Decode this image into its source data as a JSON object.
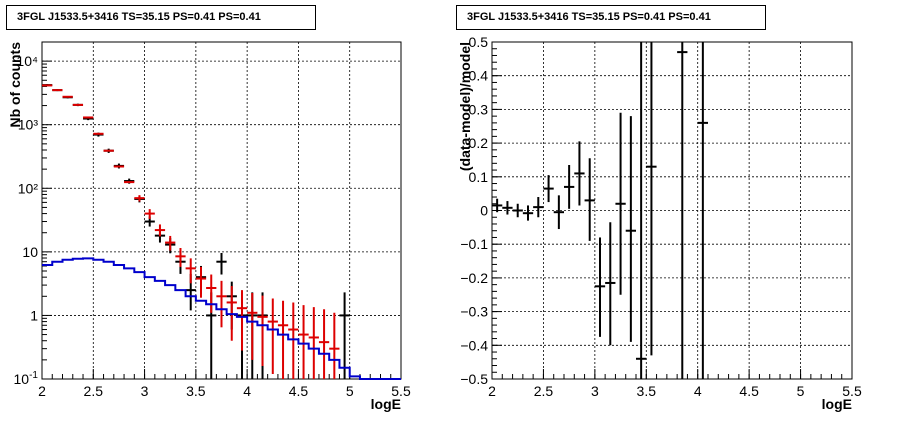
{
  "chart_data": [
    {
      "type": "line",
      "title": "3FGL J1533.5+3416 TS=35.15 PS=0.41 PS=0.41",
      "xlabel": "logE",
      "ylabel": "Nb of counts",
      "log_y": true,
      "grid": true,
      "xlim": [
        2,
        5.5
      ],
      "ylim": [
        0.1,
        20000
      ],
      "x_ticks": [
        2,
        2.5,
        3,
        3.5,
        4,
        4.5,
        5,
        5.5
      ],
      "x_tick_labels": [
        "2",
        "2.5",
        "3",
        "3.5",
        "4",
        "4.5",
        "5",
        "5.5"
      ],
      "y_ticks": [
        0.1,
        1,
        10,
        100,
        1000,
        10000
      ],
      "y_tick_labels": [
        "10-1",
        "1",
        "10",
        "10²",
        "10³",
        "10⁴"
      ],
      "colors": {
        "data": "#000000",
        "model": "#dd0000",
        "background": "#0000cc"
      },
      "series": [
        {
          "role": "data",
          "points": [
            {
              "x": 2.05,
              "y": 4200,
              "lo": 4050,
              "hi": 4350
            },
            {
              "x": 2.15,
              "y": 3500,
              "lo": 3380,
              "hi": 3620
            },
            {
              "x": 2.25,
              "y": 2700,
              "lo": 2600,
              "hi": 2800
            },
            {
              "x": 2.35,
              "y": 2050,
              "lo": 1960,
              "hi": 2140
            },
            {
              "x": 2.45,
              "y": 1250,
              "lo": 1180,
              "hi": 1320
            },
            {
              "x": 2.55,
              "y": 700,
              "lo": 650,
              "hi": 750
            },
            {
              "x": 2.65,
              "y": 390,
              "lo": 360,
              "hi": 420
            },
            {
              "x": 2.75,
              "y": 225,
              "lo": 205,
              "hi": 245
            },
            {
              "x": 2.85,
              "y": 130,
              "lo": 118,
              "hi": 142
            },
            {
              "x": 2.95,
              "y": 68,
              "lo": 60,
              "hi": 76
            },
            {
              "x": 3.05,
              "y": 30,
              "lo": 25,
              "hi": 36
            },
            {
              "x": 3.15,
              "y": 18,
              "lo": 14,
              "hi": 22
            },
            {
              "x": 3.25,
              "y": 13,
              "lo": 9.5,
              "hi": 16.5
            },
            {
              "x": 3.35,
              "y": 7,
              "lo": 4.5,
              "hi": 9.5
            },
            {
              "x": 3.45,
              "y": 2.5,
              "lo": 1.2,
              "hi": 4.5
            },
            {
              "x": 3.55,
              "y": 4,
              "lo": 2.2,
              "hi": 6
            },
            {
              "x": 3.65,
              "y": 1,
              "lo": 0.1,
              "hi": 2.3
            },
            {
              "x": 3.75,
              "y": 7,
              "lo": 4.4,
              "hi": 9.6
            },
            {
              "x": 3.85,
              "y": 2,
              "lo": 0.6,
              "hi": 3.4
            },
            {
              "x": 3.95,
              "y": 1,
              "lo": 0.1,
              "hi": 2.3
            },
            {
              "x": 4.05,
              "y": 1,
              "lo": 0.1,
              "hi": 2.3
            },
            {
              "x": 4.15,
              "y": 1,
              "lo": 0.1,
              "hi": 2.3
            },
            {
              "x": 4.95,
              "y": 1,
              "lo": 0.1,
              "hi": 2.3
            }
          ]
        },
        {
          "role": "model",
          "points": [
            {
              "x": 2.05,
              "y": 4150,
              "lo": 4150,
              "hi": 4150
            },
            {
              "x": 2.15,
              "y": 3500,
              "lo": 3500,
              "hi": 3500
            },
            {
              "x": 2.25,
              "y": 2750,
              "lo": 2750,
              "hi": 2750
            },
            {
              "x": 2.35,
              "y": 2050,
              "lo": 2050,
              "hi": 2050
            },
            {
              "x": 2.45,
              "y": 1300,
              "lo": 1300,
              "hi": 1300
            },
            {
              "x": 2.55,
              "y": 720,
              "lo": 720,
              "hi": 720
            },
            {
              "x": 2.65,
              "y": 390,
              "lo": 390,
              "hi": 390
            },
            {
              "x": 2.75,
              "y": 220,
              "lo": 220,
              "hi": 220
            },
            {
              "x": 2.85,
              "y": 125,
              "lo": 125,
              "hi": 125
            },
            {
              "x": 2.95,
              "y": 70,
              "lo": 62,
              "hi": 78
            },
            {
              "x": 3.05,
              "y": 40,
              "lo": 33,
              "hi": 47
            },
            {
              "x": 3.15,
              "y": 22,
              "lo": 17.5,
              "hi": 27
            },
            {
              "x": 3.25,
              "y": 14,
              "lo": 10.5,
              "hi": 17.8
            },
            {
              "x": 3.35,
              "y": 8.5,
              "lo": 5.8,
              "hi": 11.5
            },
            {
              "x": 3.45,
              "y": 5.5,
              "lo": 3.2,
              "hi": 7.9
            },
            {
              "x": 3.55,
              "y": 3.8,
              "lo": 1.9,
              "hi": 5.8
            },
            {
              "x": 3.65,
              "y": 2.7,
              "lo": 1.1,
              "hi": 4.4
            },
            {
              "x": 3.75,
              "y": 2.0,
              "lo": 0.65,
              "hi": 3.5
            },
            {
              "x": 3.85,
              "y": 1.6,
              "lo": 0.4,
              "hi": 2.9
            },
            {
              "x": 3.95,
              "y": 1.3,
              "lo": 0.28,
              "hi": 2.5
            },
            {
              "x": 4.05,
              "y": 1.1,
              "lo": 0.2,
              "hi": 2.25
            },
            {
              "x": 4.15,
              "y": 0.95,
              "lo": 0.16,
              "hi": 2.05
            },
            {
              "x": 4.25,
              "y": 0.8,
              "lo": 0.12,
              "hi": 1.85
            },
            {
              "x": 4.35,
              "y": 0.7,
              "lo": 0.1,
              "hi": 1.7
            },
            {
              "x": 4.45,
              "y": 0.6,
              "lo": 0.1,
              "hi": 1.6
            },
            {
              "x": 4.55,
              "y": 0.5,
              "lo": 0.1,
              "hi": 1.45
            },
            {
              "x": 4.65,
              "y": 0.45,
              "lo": 0.1,
              "hi": 1.35
            },
            {
              "x": 4.75,
              "y": 0.38,
              "lo": 0.1,
              "hi": 1.25
            },
            {
              "x": 4.85,
              "y": 0.3,
              "lo": 0.1,
              "hi": 1.1
            }
          ]
        },
        {
          "role": "background",
          "bin_edges": [
            2.0,
            2.1,
            2.2,
            2.3,
            2.4,
            2.5,
            2.6,
            2.7,
            2.8,
            2.9,
            3.0,
            3.1,
            3.2,
            3.3,
            3.4,
            3.5,
            3.6,
            3.7,
            3.8,
            3.9,
            4.0,
            4.1,
            4.2,
            4.3,
            4.4,
            4.5,
            4.6,
            4.7,
            4.8,
            4.9,
            5.0,
            5.1,
            5.2,
            5.3,
            5.4,
            5.5
          ],
          "values": [
            6.2,
            7.0,
            7.5,
            7.8,
            7.9,
            7.5,
            7.0,
            6.2,
            5.5,
            4.8,
            4.0,
            3.5,
            3.0,
            2.5,
            2.0,
            1.7,
            1.5,
            1.25,
            1.05,
            0.95,
            0.8,
            0.7,
            0.6,
            0.5,
            0.42,
            0.36,
            0.3,
            0.25,
            0.2,
            0.15,
            0.11,
            0.1,
            0.1,
            0.1,
            0.1
          ]
        }
      ]
    },
    {
      "type": "scatter",
      "title": "3FGL J1533.5+3416 TS=35.15 PS=0.41 PS=0.41",
      "xlabel": "logE",
      "ylabel": "(data-model)/model",
      "grid": true,
      "xlim": [
        2,
        5.5
      ],
      "ylim": [
        -0.5,
        0.5
      ],
      "x_ticks": [
        2,
        2.5,
        3,
        3.5,
        4,
        4.5,
        5,
        5.5
      ],
      "x_tick_labels": [
        "2",
        "2.5",
        "3",
        "3.5",
        "4",
        "4.5",
        "5",
        "5.5"
      ],
      "y_ticks": [
        -0.5,
        -0.4,
        -0.3,
        -0.2,
        -0.1,
        0,
        0.1,
        0.2,
        0.3,
        0.4,
        0.5
      ],
      "y_tick_labels": [
        "−0.5",
        "−0.4",
        "−0.3",
        "−0.2",
        "−0.1",
        "0",
        "0.1",
        "0.2",
        "0.3",
        "0.4",
        "0.5"
      ],
      "series": [
        {
          "role": "residual",
          "points": [
            {
              "x": 2.05,
              "y": 0.015,
              "lo": -0.005,
              "hi": 0.035
            },
            {
              "x": 2.15,
              "y": 0.008,
              "lo": -0.012,
              "hi": 0.028
            },
            {
              "x": 2.25,
              "y": 0.0,
              "lo": -0.02,
              "hi": 0.02
            },
            {
              "x": 2.35,
              "y": -0.008,
              "lo": -0.03,
              "hi": 0.015
            },
            {
              "x": 2.45,
              "y": 0.01,
              "lo": -0.02,
              "hi": 0.04
            },
            {
              "x": 2.55,
              "y": 0.065,
              "lo": 0.025,
              "hi": 0.105
            },
            {
              "x": 2.65,
              "y": -0.005,
              "lo": -0.055,
              "hi": 0.045
            },
            {
              "x": 2.75,
              "y": 0.07,
              "lo": 0.005,
              "hi": 0.135
            },
            {
              "x": 2.85,
              "y": 0.11,
              "lo": 0.015,
              "hi": 0.205
            },
            {
              "x": 2.95,
              "y": 0.03,
              "lo": -0.09,
              "hi": 0.155
            },
            {
              "x": 3.05,
              "y": -0.225,
              "lo": -0.375,
              "hi": -0.08
            },
            {
              "x": 3.15,
              "y": -0.215,
              "lo": -0.4,
              "hi": -0.035
            },
            {
              "x": 3.25,
              "y": 0.02,
              "lo": -0.25,
              "hi": 0.29
            },
            {
              "x": 3.35,
              "y": -0.06,
              "lo": -0.39,
              "hi": 0.28
            },
            {
              "x": 3.45,
              "y": -0.44,
              "lo": -0.5,
              "hi": 0.5
            },
            {
              "x": 3.55,
              "y": 0.13,
              "lo": -0.43,
              "hi": 0.5
            },
            {
              "x": 3.85,
              "y": 0.47,
              "lo": -0.5,
              "hi": 0.5
            },
            {
              "x": 4.05,
              "y": 0.26,
              "lo": -0.5,
              "hi": 0.5
            }
          ]
        }
      ]
    }
  ]
}
